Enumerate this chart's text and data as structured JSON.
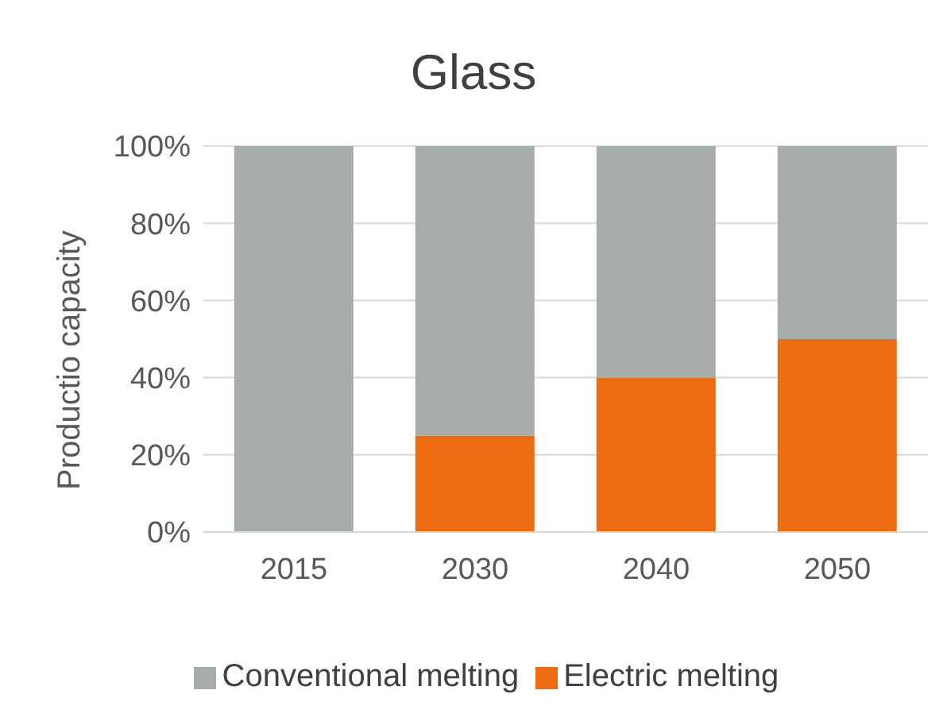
{
  "chart_data": {
    "type": "bar",
    "title": "Glass",
    "ylabel": "Productio capacity",
    "categories": [
      "2015",
      "2030",
      "2040",
      "2050"
    ],
    "stacked": true,
    "series": [
      {
        "name": "Electric melting",
        "color": "#ec6c0f",
        "values": [
          0,
          25,
          40,
          50
        ]
      },
      {
        "name": "Conventional melting",
        "color": "#a5acaa",
        "values": [
          100,
          75,
          60,
          50
        ]
      }
    ],
    "ylim": [
      0,
      100
    ],
    "yticks": [
      {
        "value": 0,
        "label": "0%"
      },
      {
        "value": 20,
        "label": "20%"
      },
      {
        "value": 40,
        "label": "40%"
      },
      {
        "value": 60,
        "label": "60%"
      },
      {
        "value": 80,
        "label": "80%"
      },
      {
        "value": 100,
        "label": "100%"
      }
    ],
    "grid": "y",
    "legend": "bottom"
  }
}
